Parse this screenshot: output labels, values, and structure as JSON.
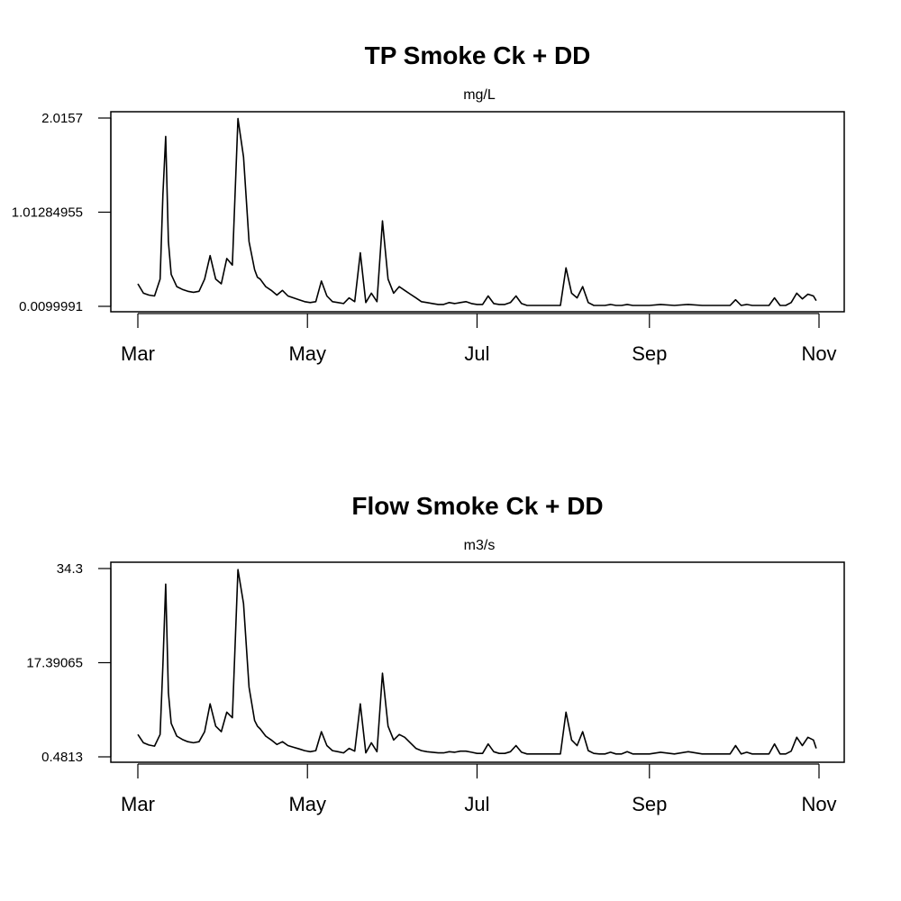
{
  "chart_data": [
    {
      "type": "line",
      "title": "TP Smoke Ck + DD",
      "subtitle": "mg/L",
      "xlabel": "",
      "ylabel": "",
      "x_ticks": [
        "Mar",
        "May",
        "Jul",
        "Sep",
        "Nov"
      ],
      "y_ticks": [
        "2.0157",
        "1.01284955",
        "0.0099991"
      ],
      "ylim": [
        0.0099991,
        2.0157
      ],
      "grid": false,
      "x": [
        "03-01",
        "03-03",
        "03-05",
        "03-07",
        "03-09",
        "03-10",
        "03-11",
        "03-12",
        "03-13",
        "03-15",
        "03-17",
        "03-19",
        "03-21",
        "03-23",
        "03-25",
        "03-27",
        "03-29",
        "03-31",
        "04-02",
        "04-04",
        "04-06",
        "04-08",
        "04-10",
        "04-12",
        "04-13",
        "04-14",
        "04-16",
        "04-18",
        "04-20",
        "04-22",
        "04-24",
        "04-26",
        "04-28",
        "04-30",
        "05-02",
        "05-04",
        "05-06",
        "05-08",
        "05-10",
        "05-12",
        "05-14",
        "05-16",
        "05-18",
        "05-20",
        "05-22",
        "05-24",
        "05-26",
        "05-28",
        "05-30",
        "06-01",
        "06-03",
        "06-05",
        "06-07",
        "06-09",
        "06-11",
        "06-13",
        "06-15",
        "06-17",
        "06-19",
        "06-21",
        "06-23",
        "06-25",
        "06-27",
        "06-29",
        "07-01",
        "07-03",
        "07-05",
        "07-07",
        "07-09",
        "07-11",
        "07-13",
        "07-15",
        "07-17",
        "07-19",
        "07-21",
        "07-23",
        "07-25",
        "07-27",
        "07-29",
        "07-31",
        "08-02",
        "08-04",
        "08-06",
        "08-08",
        "08-10",
        "08-12",
        "08-14",
        "08-16",
        "08-18",
        "08-20",
        "08-22",
        "08-24",
        "08-26",
        "08-28",
        "08-30",
        "09-01",
        "09-05",
        "09-10",
        "09-15",
        "09-20",
        "09-25",
        "09-30",
        "10-02",
        "10-04",
        "10-06",
        "10-08",
        "10-10",
        "10-12",
        "10-14",
        "10-16",
        "10-18",
        "10-20",
        "10-22",
        "10-24",
        "10-26",
        "10-28",
        "10-30",
        "10-31"
      ],
      "x_format": "MM-DD",
      "series": [
        {
          "values": [
            0.25,
            0.15,
            0.13,
            0.12,
            0.3,
            1.2,
            1.82,
            0.7,
            0.35,
            0.22,
            0.19,
            0.17,
            0.16,
            0.17,
            0.3,
            0.55,
            0.3,
            0.25,
            0.52,
            0.45,
            2.01,
            1.6,
            0.7,
            0.4,
            0.32,
            0.3,
            0.22,
            0.18,
            0.13,
            0.18,
            0.12,
            0.1,
            0.08,
            0.06,
            0.05,
            0.06,
            0.28,
            0.12,
            0.06,
            0.05,
            0.04,
            0.1,
            0.06,
            0.58,
            0.05,
            0.15,
            0.06,
            0.92,
            0.3,
            0.15,
            0.22,
            0.18,
            0.14,
            0.1,
            0.06,
            0.05,
            0.04,
            0.03,
            0.03,
            0.05,
            0.04,
            0.05,
            0.06,
            0.04,
            0.03,
            0.03,
            0.12,
            0.04,
            0.03,
            0.03,
            0.05,
            0.12,
            0.04,
            0.02,
            0.02,
            0.02,
            0.02,
            0.02,
            0.02,
            0.02,
            0.42,
            0.15,
            0.1,
            0.22,
            0.05,
            0.02,
            0.02,
            0.02,
            0.03,
            0.02,
            0.02,
            0.03,
            0.02,
            0.02,
            0.02,
            0.02,
            0.03,
            0.02,
            0.03,
            0.02,
            0.02,
            0.02,
            0.08,
            0.02,
            0.03,
            0.02,
            0.02,
            0.02,
            0.02,
            0.1,
            0.02,
            0.02,
            0.05,
            0.15,
            0.09,
            0.14,
            0.12,
            0.07
          ]
        }
      ]
    },
    {
      "type": "line",
      "title": "Flow Smoke Ck + DD",
      "subtitle": "m3/s",
      "xlabel": "",
      "ylabel": "",
      "x_ticks": [
        "Mar",
        "May",
        "Jul",
        "Sep",
        "Nov"
      ],
      "y_ticks": [
        "34.3",
        "17.39065",
        "0.4813"
      ],
      "ylim": [
        0.4813,
        34.3
      ],
      "grid": false,
      "x": [
        "03-01",
        "03-03",
        "03-05",
        "03-07",
        "03-09",
        "03-10",
        "03-11",
        "03-12",
        "03-13",
        "03-15",
        "03-17",
        "03-19",
        "03-21",
        "03-23",
        "03-25",
        "03-27",
        "03-29",
        "03-31",
        "04-02",
        "04-04",
        "04-06",
        "04-08",
        "04-10",
        "04-12",
        "04-13",
        "04-14",
        "04-16",
        "04-18",
        "04-20",
        "04-22",
        "04-24",
        "04-26",
        "04-28",
        "04-30",
        "05-02",
        "05-04",
        "05-06",
        "05-08",
        "05-10",
        "05-12",
        "05-14",
        "05-16",
        "05-18",
        "05-20",
        "05-22",
        "05-24",
        "05-26",
        "05-28",
        "05-30",
        "06-01",
        "06-03",
        "06-05",
        "06-07",
        "06-09",
        "06-11",
        "06-13",
        "06-15",
        "06-17",
        "06-19",
        "06-21",
        "06-23",
        "06-25",
        "06-27",
        "06-29",
        "07-01",
        "07-03",
        "07-05",
        "07-07",
        "07-09",
        "07-11",
        "07-13",
        "07-15",
        "07-17",
        "07-19",
        "07-21",
        "07-23",
        "07-25",
        "07-27",
        "07-29",
        "07-31",
        "08-02",
        "08-04",
        "08-06",
        "08-08",
        "08-10",
        "08-12",
        "08-14",
        "08-16",
        "08-18",
        "08-20",
        "08-22",
        "08-24",
        "08-26",
        "08-28",
        "08-30",
        "09-01",
        "09-05",
        "09-10",
        "09-15",
        "09-20",
        "09-25",
        "09-30",
        "10-02",
        "10-04",
        "10-06",
        "10-08",
        "10-10",
        "10-12",
        "10-14",
        "10-16",
        "10-18",
        "10-20",
        "10-22",
        "10-24",
        "10-26",
        "10-28",
        "10-30",
        "10-31"
      ],
      "x_format": "MM-DD",
      "series": [
        {
          "values": [
            4.5,
            3.0,
            2.6,
            2.4,
            4.5,
            17,
            31.5,
            12,
            6.5,
            4.2,
            3.6,
            3.2,
            3.0,
            3.2,
            5,
            10,
            6,
            5,
            8.5,
            7.5,
            34.1,
            28,
            13,
            7,
            6,
            5.5,
            4.2,
            3.5,
            2.7,
            3.2,
            2.5,
            2.2,
            1.9,
            1.6,
            1.4,
            1.6,
            5,
            2.5,
            1.6,
            1.4,
            1.2,
            2,
            1.5,
            10,
            1.2,
            3,
            1.4,
            15.5,
            6,
            3.5,
            4.5,
            4,
            3,
            2,
            1.6,
            1.4,
            1.3,
            1.2,
            1.2,
            1.4,
            1.3,
            1.5,
            1.5,
            1.3,
            1.1,
            1.1,
            2.8,
            1.4,
            1.1,
            1.1,
            1.4,
            2.5,
            1.3,
            1,
            1,
            1,
            1,
            1,
            1,
            1,
            8.5,
            3.5,
            2.5,
            5,
            1.6,
            1.1,
            1,
            1,
            1.3,
            1,
            1,
            1.4,
            1,
            1,
            1,
            1,
            1.3,
            1,
            1.4,
            1,
            1,
            1,
            2.5,
            1,
            1.3,
            1,
            1,
            1,
            1,
            2.8,
            1,
            1,
            1.5,
            4,
            2.5,
            4,
            3.5,
            2
          ]
        }
      ]
    }
  ]
}
